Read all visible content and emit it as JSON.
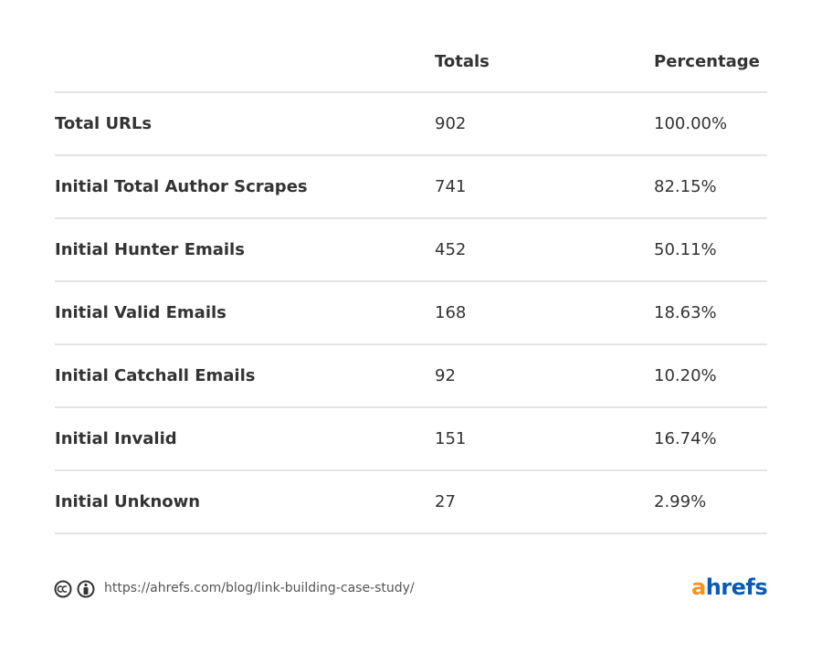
{
  "table": {
    "columns": [
      "Totals",
      "Percentage"
    ],
    "rows": [
      [
        "Total URLs",
        "902",
        "100.00%"
      ],
      [
        "Initial Total Author Scrapes",
        "741",
        "82.15%"
      ],
      [
        "Initial Hunter Emails",
        "452",
        "50.11%"
      ],
      [
        "Initial Valid Emails",
        "168",
        "18.63%"
      ],
      [
        "Initial Catchall Emails",
        "92",
        "10.20%"
      ],
      [
        "Initial Invalid",
        "151",
        "16.74%"
      ],
      [
        "Initial Unknown",
        "27",
        "2.99%"
      ]
    ]
  },
  "footer": {
    "url": "https://ahrefs.com/blog/link-building-case-study/",
    "brand": [
      "a",
      "hrefs"
    ]
  }
}
